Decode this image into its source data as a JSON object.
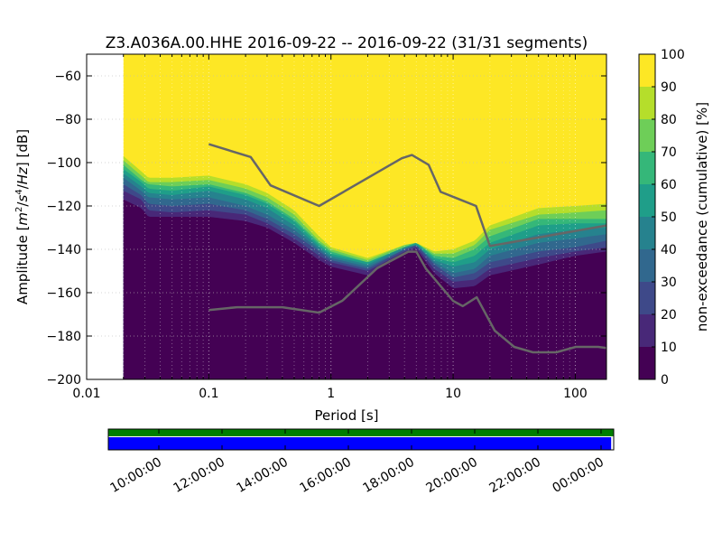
{
  "chart_data": {
    "type": "heatmap",
    "title": "Z3.A036A.00.HHE   2016-09-22 -- 2016-09-22  (31/31 segments)",
    "xlabel": "Period [s]",
    "ylabel": "Amplitude [m²/s⁴/Hz] [dB]",
    "ylabel_parts": {
      "prefix": "Amplitude [",
      "m": "m",
      "m_exp": "2",
      "slash1": "/",
      "s": "s",
      "s_exp": "4",
      "slash2": "/",
      "hz": "Hz",
      "suffix": "] [dB]"
    },
    "x_scale": "log",
    "xlim": [
      0.01,
      180
    ],
    "ylim": [
      -200,
      -50
    ],
    "x_ticks": [
      {
        "value": 0.01,
        "label": "0.01"
      },
      {
        "value": 0.1,
        "label": "0.1"
      },
      {
        "value": 1,
        "label": "1"
      },
      {
        "value": 10,
        "label": "10"
      },
      {
        "value": 100,
        "label": "100"
      }
    ],
    "y_ticks": [
      {
        "value": -60,
        "label": "−60"
      },
      {
        "value": -80,
        "label": "−80"
      },
      {
        "value": -100,
        "label": "−100"
      },
      {
        "value": -120,
        "label": "−120"
      },
      {
        "value": -140,
        "label": "−140"
      },
      {
        "value": -160,
        "label": "−160"
      },
      {
        "value": -180,
        "label": "−180"
      },
      {
        "value": -200,
        "label": "−200"
      }
    ],
    "grid": true,
    "data_period_start": 0.02,
    "colorbar": {
      "label": "non-exceedance (cumulative) [%]",
      "range": [
        0,
        100
      ],
      "ticks": [
        {
          "value": 0,
          "label": "0"
        },
        {
          "value": 10,
          "label": "10"
        },
        {
          "value": 20,
          "label": "20"
        },
        {
          "value": 30,
          "label": "30"
        },
        {
          "value": 40,
          "label": "40"
        },
        {
          "value": 50,
          "label": "50"
        },
        {
          "value": 60,
          "label": "60"
        },
        {
          "value": 70,
          "label": "70"
        },
        {
          "value": 80,
          "label": "80"
        },
        {
          "value": 90,
          "label": "90"
        },
        {
          "value": 100,
          "label": "100"
        }
      ],
      "colors": [
        "#440154",
        "#482878",
        "#3e4989",
        "#31688e",
        "#26828e",
        "#1f9e89",
        "#35b779",
        "#6ece58",
        "#b5de2b",
        "#fde725"
      ]
    },
    "percentile_contours": {
      "p10_lower": [
        [
          0.02,
          -117
        ],
        [
          0.028,
          -121
        ],
        [
          0.032,
          -125
        ],
        [
          0.05,
          -125
        ],
        [
          0.1,
          -125
        ],
        [
          0.2,
          -127
        ],
        [
          0.3,
          -130
        ],
        [
          0.5,
          -137
        ],
        [
          0.8,
          -145
        ],
        [
          1,
          -148
        ],
        [
          2,
          -152
        ],
        [
          4,
          -142
        ],
        [
          5,
          -140
        ],
        [
          7,
          -151
        ],
        [
          10,
          -158
        ],
        [
          15,
          -157
        ],
        [
          20,
          -152
        ],
        [
          50,
          -147
        ],
        [
          100,
          -143
        ],
        [
          180,
          -141
        ]
      ],
      "p20": [
        [
          0.02,
          -113
        ],
        [
          0.028,
          -117
        ],
        [
          0.032,
          -122
        ],
        [
          0.05,
          -123
        ],
        [
          0.1,
          -122
        ],
        [
          0.2,
          -124
        ],
        [
          0.3,
          -128
        ],
        [
          0.5,
          -135
        ],
        [
          0.8,
          -143
        ],
        [
          1,
          -146
        ],
        [
          2,
          -150
        ],
        [
          4,
          -141
        ],
        [
          5,
          -139
        ],
        [
          7,
          -149
        ],
        [
          10,
          -155
        ],
        [
          15,
          -154
        ],
        [
          20,
          -149
        ],
        [
          50,
          -144
        ],
        [
          100,
          -141
        ],
        [
          180,
          -139
        ]
      ],
      "p30": [
        [
          0.02,
          -110
        ],
        [
          0.028,
          -115
        ],
        [
          0.032,
          -119
        ],
        [
          0.05,
          -120
        ],
        [
          0.1,
          -119
        ],
        [
          0.2,
          -122
        ],
        [
          0.3,
          -126
        ],
        [
          0.5,
          -133
        ],
        [
          0.8,
          -141
        ],
        [
          1,
          -145
        ],
        [
          2,
          -149
        ],
        [
          4,
          -140
        ],
        [
          5,
          -138
        ],
        [
          7,
          -147
        ],
        [
          10,
          -153
        ],
        [
          15,
          -151
        ],
        [
          20,
          -146
        ],
        [
          50,
          -141
        ],
        [
          100,
          -139
        ],
        [
          180,
          -136
        ]
      ],
      "p40": [
        [
          0.02,
          -107
        ],
        [
          0.028,
          -113
        ],
        [
          0.032,
          -116
        ],
        [
          0.05,
          -117
        ],
        [
          0.1,
          -116
        ],
        [
          0.2,
          -120
        ],
        [
          0.3,
          -124
        ],
        [
          0.5,
          -131
        ],
        [
          0.8,
          -140
        ],
        [
          1,
          -144
        ],
        [
          2,
          -148
        ],
        [
          4,
          -140
        ],
        [
          5,
          -138
        ],
        [
          7,
          -146
        ],
        [
          10,
          -151
        ],
        [
          15,
          -149
        ],
        [
          20,
          -143
        ],
        [
          50,
          -137
        ],
        [
          100,
          -135
        ],
        [
          180,
          -133
        ]
      ],
      "p50": [
        [
          0.02,
          -105
        ],
        [
          0.028,
          -111
        ],
        [
          0.032,
          -114
        ],
        [
          0.05,
          -115
        ],
        [
          0.1,
          -113
        ],
        [
          0.2,
          -117
        ],
        [
          0.3,
          -121
        ],
        [
          0.5,
          -129
        ],
        [
          0.8,
          -139
        ],
        [
          1,
          -143
        ],
        [
          2,
          -147
        ],
        [
          4,
          -139
        ],
        [
          5,
          -138
        ],
        [
          7,
          -145
        ],
        [
          10,
          -148
        ],
        [
          15,
          -146
        ],
        [
          20,
          -140
        ],
        [
          50,
          -133
        ],
        [
          100,
          -131
        ],
        [
          180,
          -130
        ]
      ],
      "p60": [
        [
          0.02,
          -103
        ],
        [
          0.028,
          -109
        ],
        [
          0.032,
          -112
        ],
        [
          0.05,
          -113
        ],
        [
          0.1,
          -111
        ],
        [
          0.2,
          -115
        ],
        [
          0.3,
          -119
        ],
        [
          0.5,
          -127
        ],
        [
          0.8,
          -138
        ],
        [
          1,
          -142
        ],
        [
          2,
          -146
        ],
        [
          4,
          -139
        ],
        [
          5,
          -137
        ],
        [
          7,
          -144
        ],
        [
          10,
          -146
        ],
        [
          15,
          -143
        ],
        [
          20,
          -137
        ],
        [
          50,
          -129
        ],
        [
          100,
          -128
        ],
        [
          180,
          -128
        ]
      ],
      "p70": [
        [
          0.02,
          -101
        ],
        [
          0.028,
          -108
        ],
        [
          0.032,
          -110
        ],
        [
          0.05,
          -111
        ],
        [
          0.1,
          -110
        ],
        [
          0.2,
          -114
        ],
        [
          0.3,
          -118
        ],
        [
          0.5,
          -126
        ],
        [
          0.8,
          -137
        ],
        [
          1,
          -141
        ],
        [
          2,
          -146
        ],
        [
          4,
          -139
        ],
        [
          5,
          -137
        ],
        [
          7,
          -143
        ],
        [
          10,
          -144
        ],
        [
          15,
          -140
        ],
        [
          20,
          -134
        ],
        [
          50,
          -126
        ],
        [
          100,
          -126
        ],
        [
          180,
          -126
        ]
      ],
      "p80": [
        [
          0.02,
          -99
        ],
        [
          0.028,
          -106
        ],
        [
          0.032,
          -109
        ],
        [
          0.05,
          -109
        ],
        [
          0.1,
          -108
        ],
        [
          0.2,
          -112
        ],
        [
          0.3,
          -116
        ],
        [
          0.5,
          -124
        ],
        [
          0.8,
          -136
        ],
        [
          1,
          -140
        ],
        [
          2,
          -145
        ],
        [
          4,
          -138
        ],
        [
          5,
          -137
        ],
        [
          7,
          -142
        ],
        [
          10,
          -142
        ],
        [
          15,
          -138
        ],
        [
          20,
          -131
        ],
        [
          50,
          -124
        ],
        [
          100,
          -123
        ],
        [
          180,
          -122
        ]
      ],
      "p90": [
        [
          0.02,
          -97
        ],
        [
          0.028,
          -104
        ],
        [
          0.032,
          -107
        ],
        [
          0.05,
          -107
        ],
        [
          0.1,
          -106
        ],
        [
          0.2,
          -110
        ],
        [
          0.3,
          -114
        ],
        [
          0.5,
          -122
        ],
        [
          0.8,
          -134
        ],
        [
          1,
          -139
        ],
        [
          2,
          -144
        ],
        [
          4,
          -138
        ],
        [
          5,
          -137
        ],
        [
          7,
          -141
        ],
        [
          10,
          -140
        ],
        [
          15,
          -136
        ],
        [
          20,
          -129
        ],
        [
          50,
          -121
        ],
        [
          100,
          -120
        ],
        [
          180,
          -119
        ]
      ]
    },
    "noise_models": {
      "nhnm": [
        [
          0.1,
          -91.5
        ],
        [
          0.22,
          -97.4
        ],
        [
          0.32,
          -110.5
        ],
        [
          0.8,
          -120
        ],
        [
          3.8,
          -98
        ],
        [
          4.6,
          -96.5
        ],
        [
          6.3,
          -101
        ],
        [
          7.9,
          -113.5
        ],
        [
          15.4,
          -120
        ],
        [
          20,
          -138.5
        ],
        [
          180,
          -129
        ]
      ],
      "nlnm": [
        [
          0.1,
          -168
        ],
        [
          0.17,
          -166.7
        ],
        [
          0.4,
          -166.7
        ],
        [
          0.8,
          -169.2
        ],
        [
          1.24,
          -163.7
        ],
        [
          2.4,
          -148.6
        ],
        [
          4.3,
          -141.1
        ],
        [
          5,
          -141.1
        ],
        [
          6,
          -149
        ],
        [
          10,
          -163.8
        ],
        [
          12,
          -166.2
        ],
        [
          15.6,
          -162.1
        ],
        [
          21.9,
          -177.5
        ],
        [
          31.6,
          -185
        ],
        [
          45,
          -187.5
        ],
        [
          70,
          -187.5
        ],
        [
          101,
          -185
        ],
        [
          154,
          -185
        ],
        [
          180,
          -185.5
        ]
      ]
    },
    "noise_model_color": "#666666",
    "coverage": {
      "time_ticks": [
        {
          "label": "10:00:00",
          "value": 0.1
        },
        {
          "label": "12:00:00",
          "value": 0.225
        },
        {
          "label": "14:00:00",
          "value": 0.35
        },
        {
          "label": "16:00:00",
          "value": 0.475
        },
        {
          "label": "18:00:00",
          "value": 0.6
        },
        {
          "label": "20:00:00",
          "value": 0.725
        },
        {
          "label": "22:00:00",
          "value": 0.85
        },
        {
          "label": "00:00:00",
          "value": 0.975
        }
      ],
      "data_color": "#007f00",
      "used_color": "#0000ff",
      "used_fraction": 0.995
    }
  }
}
